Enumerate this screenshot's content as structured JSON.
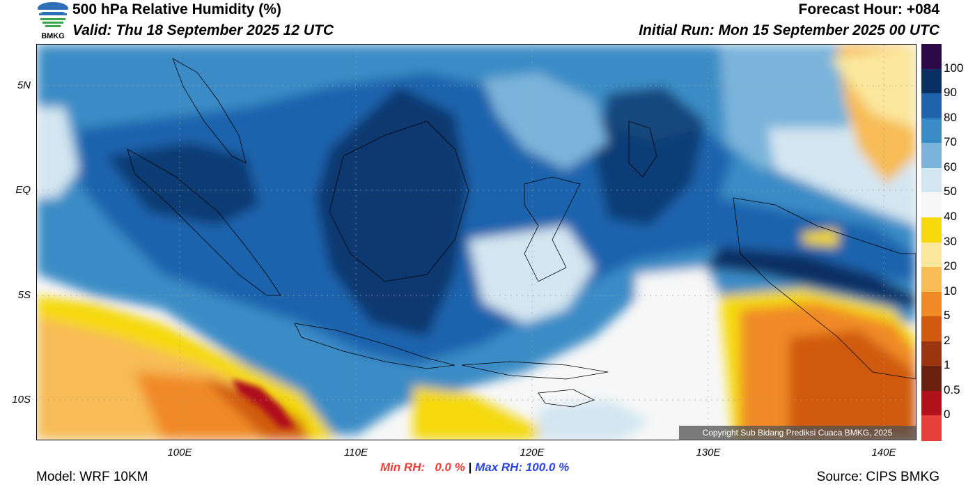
{
  "header": {
    "title": "500 hPa Relative Humidity (%)",
    "valid": "Valid: Thu 18 September 2025 12 UTC",
    "forecast_hour": "Forecast Hour: +084",
    "initial_run": "Initial Run: Mon 15 September 2025 00 UTC",
    "logo_text": "BMKG"
  },
  "axes": {
    "lat_labels": [
      "5N",
      "EQ",
      "5S",
      "10S"
    ],
    "lon_labels": [
      "100E",
      "110E",
      "120E",
      "130E",
      "140E"
    ]
  },
  "footer": {
    "model": "Model: WRF 10KM",
    "source": "Source: CIPS BMKG",
    "min_rh": "Min RH:   0.0 %",
    "separator": "|",
    "max_rh": "Max RH: 100.0 %"
  },
  "copyright": "Copyright Sub Bidang Prediksi Cuaca BMKG, 2025",
  "colorbar": {
    "labels": [
      "100",
      "90",
      "80",
      "70",
      "60",
      "50",
      "40",
      "30",
      "20",
      "10",
      "5",
      "2",
      "1",
      "0.5",
      "0"
    ],
    "colors": [
      "#2d0b48",
      "#0a2f64",
      "#1f64ad",
      "#3a8cc6",
      "#7ab4da",
      "#d3e6f1",
      "#f7f7f7",
      "#f5d90a",
      "#fbe79c",
      "#f7bc55",
      "#f08a26",
      "#cf5a10",
      "#9b3510",
      "#6b210f",
      "#b0111a",
      "#e8403a"
    ]
  },
  "colors": {
    "min_rh": "#e8403a",
    "max_rh": "#2a45e8"
  }
}
